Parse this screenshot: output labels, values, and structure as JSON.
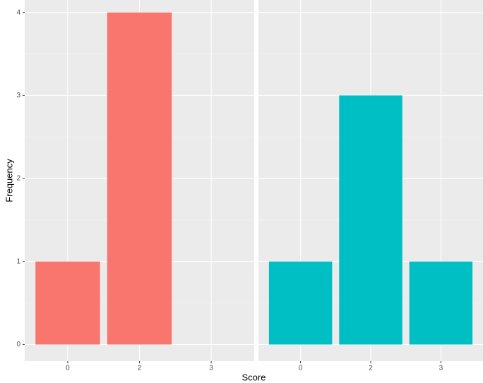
{
  "chart_data": [
    {
      "type": "bar",
      "ylabel": "Frequency",
      "xlabel": "Score",
      "categories": [
        "0",
        "2",
        "3"
      ],
      "values": [
        1,
        4,
        0
      ],
      "color": "#f8766d",
      "ylim": [
        -0.2,
        4.15
      ],
      "yticks": [
        0,
        1,
        2,
        3,
        4
      ],
      "grid": true
    },
    {
      "type": "bar",
      "categories": [
        "0",
        "2",
        "3"
      ],
      "values": [
        1,
        3,
        1
      ],
      "color": "#00bfc4",
      "ylim": [
        -0.2,
        4.15
      ],
      "yticks": [
        0,
        1,
        2,
        3,
        4
      ],
      "grid": true
    }
  ]
}
